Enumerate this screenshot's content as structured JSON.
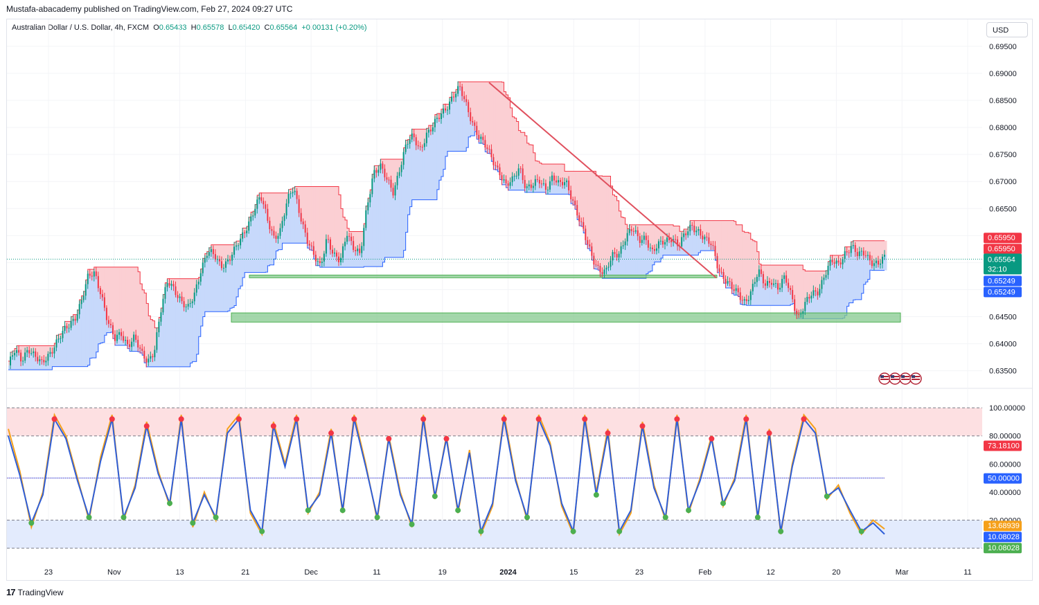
{
  "header": {
    "published": "Mustafa-abacademy published on TradingView.com, Feb 27, 2024 09:27 UTC",
    "symbol": "Australian Dollar / U.S. Dollar, 4h, FXCM",
    "open_label": "O",
    "open": "0.65433",
    "high_label": "H",
    "high": "0.65578",
    "low_label": "L",
    "low": "0.65420",
    "close_label": "C",
    "close": "0.65564",
    "change": "+0.00131 (+0.20%)",
    "currency": "USD"
  },
  "footer": {
    "brand": "TradingView"
  },
  "colors": {
    "up": "#089981",
    "down": "#f23645",
    "support_fill": "#c7d9fb",
    "resistance_fill": "#fbcfd3",
    "zone": "#86c98f",
    "trendline": "#e0505e",
    "stoch_k": "#2e5ed8",
    "stoch_d": "#f5a01a"
  },
  "chart_data": [
    {
      "type": "candlestick",
      "title": "",
      "y_axis": [
        "0.69500",
        "0.69000",
        "0.68500",
        "0.68000",
        "0.67500",
        "0.67000",
        "0.66500",
        "0.66000",
        "0.65500",
        "0.65000",
        "0.64500",
        "0.64000",
        "0.63500"
      ],
      "ylim": [
        0.6338,
        0.6955
      ],
      "x_axis": [
        "23",
        "Nov",
        "13",
        "21",
        "Dec",
        "11",
        "19",
        "2024",
        "15",
        "23",
        "Feb",
        "12",
        "20",
        "Mar",
        "11"
      ],
      "price_path": [
        0.636,
        0.6385,
        0.637,
        0.6395,
        0.6375,
        0.636,
        0.638,
        0.64,
        0.6415,
        0.643,
        0.645,
        0.648,
        0.652,
        0.653,
        0.6495,
        0.644,
        0.6405,
        0.642,
        0.64,
        0.641,
        0.638,
        0.637,
        0.639,
        0.646,
        0.6515,
        0.6505,
        0.648,
        0.646,
        0.649,
        0.654,
        0.657,
        0.656,
        0.6545,
        0.6555,
        0.657,
        0.659,
        0.662,
        0.665,
        0.667,
        0.663,
        0.66,
        0.661,
        0.666,
        0.669,
        0.664,
        0.659,
        0.656,
        0.6545,
        0.66,
        0.656,
        0.655,
        0.661,
        0.658,
        0.656,
        0.665,
        0.672,
        0.673,
        0.67,
        0.668,
        0.673,
        0.677,
        0.678,
        0.676,
        0.679,
        0.68,
        0.682,
        0.684,
        0.686,
        0.687,
        0.684,
        0.681,
        0.678,
        0.676,
        0.674,
        0.672,
        0.669,
        0.67,
        0.673,
        0.669,
        0.669,
        0.67,
        0.669,
        0.671,
        0.669,
        0.67,
        0.667,
        0.663,
        0.659,
        0.656,
        0.654,
        0.653,
        0.656,
        0.657,
        0.66,
        0.661,
        0.659,
        0.66,
        0.657,
        0.658,
        0.659,
        0.66,
        0.658,
        0.66,
        0.662,
        0.661,
        0.659,
        0.658,
        0.654,
        0.652,
        0.65,
        0.649,
        0.648,
        0.65,
        0.653,
        0.651,
        0.652,
        0.65,
        0.652,
        0.649,
        0.645,
        0.647,
        0.649,
        0.65,
        0.653,
        0.655,
        0.6545,
        0.657,
        0.658,
        0.656,
        0.657,
        0.6555,
        0.6545,
        0.6556
      ],
      "support_levels": [
        "0.65249",
        "0.64500"
      ],
      "resistance_level": "0.65950",
      "zones": [
        {
          "from": 0.6522,
          "to": 0.6527
        },
        {
          "from": 0.644,
          "to": 0.6457
        }
      ],
      "last_price": "0.65564",
      "countdown": "32:10"
    },
    {
      "type": "line",
      "title": "",
      "y_axis": [
        "100.00000",
        "80.00000",
        "60.00000",
        "40.00000",
        "20.00000"
      ],
      "ylim": [
        0,
        105
      ],
      "levels": {
        "upper": 100,
        "overbought": 80,
        "mid": 50,
        "oversold": 20,
        "lower": 0
      },
      "series": [
        {
          "values": [
            85,
            55,
            15,
            40,
            95,
            80,
            50,
            20,
            65,
            95,
            20,
            45,
            90,
            55,
            30,
            95,
            15,
            40,
            20,
            85,
            95,
            25,
            10,
            90,
            60,
            95,
            25,
            40,
            85,
            25,
            95,
            60,
            20,
            80,
            40,
            15,
            95,
            35,
            80,
            25,
            70,
            10,
            30,
            95,
            50,
            20,
            95,
            75,
            30,
            10,
            95,
            40,
            85,
            10,
            25,
            90,
            45,
            20,
            95,
            25,
            50,
            80,
            30,
            50,
            95,
            20,
            85,
            10,
            60,
            95,
            85,
            35,
            45,
            25,
            10,
            20,
            13.69
          ]
        },
        {
          "values": [
            80,
            52,
            18,
            38,
            92,
            78,
            48,
            22,
            62,
            92,
            22,
            43,
            87,
            53,
            32,
            92,
            18,
            38,
            22,
            82,
            92,
            27,
            12,
            87,
            58,
            92,
            27,
            38,
            82,
            27,
            92,
            58,
            22,
            78,
            38,
            17,
            92,
            37,
            78,
            27,
            68,
            12,
            32,
            92,
            48,
            22,
            92,
            73,
            32,
            12,
            92,
            38,
            82,
            12,
            27,
            87,
            43,
            22,
            92,
            27,
            48,
            78,
            32,
            48,
            92,
            22,
            82,
            12,
            58,
            92,
            82,
            37,
            43,
            27,
            12,
            18,
            10.08
          ]
        }
      ],
      "tags": {
        "value_a": "73.18100",
        "value_b": "50.00000",
        "value_c": "13.68939",
        "value_d": "10.08028",
        "value_e": "10.08028"
      }
    }
  ]
}
